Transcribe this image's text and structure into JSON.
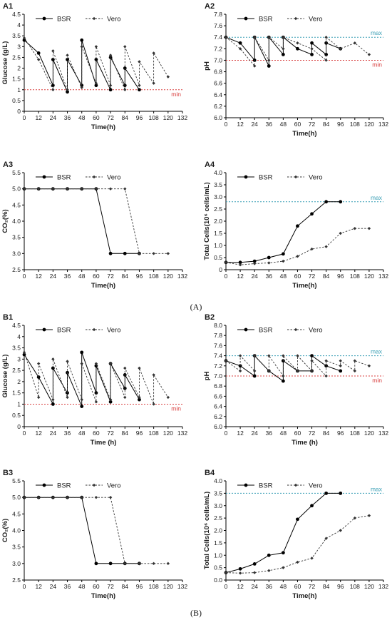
{
  "figure": {
    "label_a": "(A)",
    "label_b": "(B)"
  },
  "colors": {
    "bsr": "#000000",
    "vero": "#333333",
    "max": "#3a9fb5",
    "min": "#d94040",
    "axis": "#000000"
  },
  "chart_data": [
    {
      "id": "A1",
      "type": "line",
      "title": "A1",
      "xlabel": "Time(h)",
      "ylabel": "Glucose (g/L)",
      "xlim": [
        0,
        132
      ],
      "ylim": [
        0,
        4.5
      ],
      "xticks": [
        0,
        12,
        24,
        36,
        48,
        60,
        72,
        84,
        96,
        108,
        120,
        132
      ],
      "yticks": [
        0,
        0.5,
        1,
        1.5,
        2,
        2.5,
        3,
        3.5,
        4,
        4.5
      ],
      "ytick_labels": [
        "0",
        "0.5",
        "1",
        "1.5",
        "2",
        "2.5",
        "3",
        "3.5",
        "4",
        "4.5"
      ],
      "legend": "top",
      "reference_lines": [
        {
          "label": "min",
          "y": 1.0,
          "color": "#d94040"
        }
      ],
      "series": [
        {
          "name": "BSR",
          "style": "solid",
          "marker": "circle",
          "x": [
            0,
            12,
            24,
            24,
            36,
            36,
            48,
            48,
            60,
            60,
            72,
            72,
            84,
            84,
            96
          ],
          "y": [
            3.3,
            2.7,
            1.2,
            2.4,
            0.9,
            2.4,
            1.2,
            3.3,
            1.2,
            2.4,
            1.0,
            2.5,
            1.2,
            2.0,
            1.0
          ]
        },
        {
          "name": "Vero",
          "style": "dashed",
          "marker": "diamond",
          "x": [
            0,
            12,
            24,
            24,
            36,
            36,
            48,
            48,
            60,
            60,
            72,
            72,
            84,
            84,
            96,
            96,
            108,
            108,
            120
          ],
          "y": [
            3.4,
            2.4,
            1.0,
            2.8,
            1.0,
            2.6,
            1.1,
            3.0,
            1.3,
            3.0,
            1.2,
            2.6,
            1.0,
            3.0,
            1.2,
            2.3,
            1.3,
            2.7,
            1.6
          ]
        }
      ]
    },
    {
      "id": "A2",
      "type": "line",
      "title": "A2",
      "xlabel": "Time(h)",
      "ylabel": "pH",
      "xlim": [
        0,
        132
      ],
      "ylim": [
        6.0,
        7.8
      ],
      "xticks": [
        0,
        12,
        24,
        36,
        48,
        60,
        72,
        84,
        96,
        108,
        120,
        132
      ],
      "yticks": [
        6.0,
        6.2,
        6.4,
        6.6,
        6.8,
        7.0,
        7.2,
        7.4,
        7.6,
        7.8
      ],
      "ytick_labels": [
        "6.0",
        "6.2",
        "6.4",
        "6.6",
        "6.8",
        "7.0",
        "7.2",
        "7.4",
        "7.6",
        "7.8"
      ],
      "legend": "top",
      "reference_lines": [
        {
          "label": "max",
          "y": 7.4,
          "color": "#3a9fb5"
        },
        {
          "label": "min",
          "y": 7.0,
          "color": "#d94040"
        }
      ],
      "series": [
        {
          "name": "BSR",
          "style": "solid",
          "marker": "circle",
          "x": [
            0,
            12,
            24,
            24,
            36,
            36,
            48,
            48,
            60,
            72,
            72,
            84,
            84,
            96
          ],
          "y": [
            7.4,
            7.3,
            7.0,
            7.4,
            6.9,
            7.4,
            7.1,
            7.4,
            7.2,
            7.1,
            7.3,
            7.1,
            7.3,
            7.2
          ]
        },
        {
          "name": "Vero",
          "style": "dashed",
          "marker": "diamond",
          "x": [
            0,
            12,
            24,
            24,
            36,
            36,
            48,
            48,
            60,
            72,
            84,
            84,
            96,
            108,
            120
          ],
          "y": [
            7.4,
            7.2,
            6.9,
            7.4,
            7.0,
            7.4,
            7.2,
            7.4,
            7.3,
            7.2,
            7.0,
            7.4,
            7.2,
            7.3,
            7.1
          ]
        }
      ]
    },
    {
      "id": "A3",
      "type": "line",
      "title": "A3",
      "xlabel": "Time(h)",
      "ylabel": "CO₂(%)",
      "xlim": [
        0,
        132
      ],
      "ylim": [
        2.5,
        5.5
      ],
      "xticks": [
        0,
        12,
        24,
        36,
        48,
        60,
        72,
        84,
        96,
        108,
        120,
        132
      ],
      "yticks": [
        2.5,
        3.0,
        3.5,
        4.0,
        4.5,
        5.0,
        5.5
      ],
      "ytick_labels": [
        "2.5",
        "3.0",
        "3.5",
        "4.0",
        "4.5",
        "5.0",
        "5.5"
      ],
      "legend": "top",
      "reference_lines": [],
      "series": [
        {
          "name": "BSR",
          "style": "solid",
          "marker": "circle",
          "x": [
            0,
            12,
            24,
            36,
            48,
            60,
            72,
            84,
            96
          ],
          "y": [
            5.0,
            5.0,
            5.0,
            5.0,
            5.0,
            5.0,
            3.0,
            3.0,
            3.0
          ]
        },
        {
          "name": "Vero",
          "style": "dashed",
          "marker": "diamond",
          "x": [
            0,
            12,
            24,
            36,
            48,
            60,
            72,
            84,
            96,
            108,
            120
          ],
          "y": [
            5.0,
            5.0,
            5.0,
            5.0,
            5.0,
            5.0,
            5.0,
            5.0,
            3.0,
            3.0,
            3.0
          ]
        }
      ]
    },
    {
      "id": "A4",
      "type": "line",
      "title": "A4",
      "xlabel": "Time(h)",
      "ylabel": "Total Cells(10⁶ cells/mL)",
      "xlim": [
        0,
        132
      ],
      "ylim": [
        0,
        4.0
      ],
      "xticks": [
        0,
        12,
        24,
        36,
        48,
        60,
        72,
        84,
        96,
        108,
        120,
        132
      ],
      "yticks": [
        0,
        0.5,
        1.0,
        1.5,
        2.0,
        2.5,
        3.0,
        3.5,
        4.0
      ],
      "ytick_labels": [
        "0",
        "0.5",
        "1.0",
        "1.5",
        "2.0",
        "2.5",
        "3.0",
        "3.5",
        "4.0"
      ],
      "legend": "top",
      "reference_lines": [
        {
          "label": "max",
          "y": 2.8,
          "color": "#3a9fb5"
        }
      ],
      "series": [
        {
          "name": "BSR",
          "style": "solid",
          "marker": "circle",
          "x": [
            0,
            12,
            24,
            36,
            48,
            60,
            72,
            84,
            96
          ],
          "y": [
            0.3,
            0.3,
            0.35,
            0.5,
            0.65,
            1.8,
            2.3,
            2.8,
            2.8
          ]
        },
        {
          "name": "Vero",
          "style": "dashed",
          "marker": "diamond",
          "x": [
            0,
            12,
            24,
            36,
            48,
            60,
            72,
            84,
            96,
            108,
            120
          ],
          "y": [
            0.3,
            0.2,
            0.25,
            0.28,
            0.35,
            0.55,
            0.85,
            0.95,
            1.5,
            1.7,
            1.7
          ]
        }
      ]
    },
    {
      "id": "B1",
      "type": "line",
      "title": "B1",
      "xlabel": "Time (h)",
      "ylabel": "Glucose (g/L)",
      "xlim": [
        0,
        132
      ],
      "ylim": [
        0,
        4.5
      ],
      "xticks": [
        0,
        12,
        24,
        36,
        48,
        60,
        72,
        84,
        96,
        108,
        120,
        132
      ],
      "yticks": [
        0,
        0.5,
        1,
        1.5,
        2,
        2.5,
        3,
        3.5,
        4,
        4.5
      ],
      "ytick_labels": [
        "0",
        "0.5",
        "1",
        "1.5",
        "2",
        "2.5",
        "3",
        "3.5",
        "4",
        "4.5"
      ],
      "legend": "top",
      "reference_lines": [
        {
          "label": "min",
          "y": 1.0,
          "color": "#d94040"
        }
      ],
      "series": [
        {
          "name": "BSR",
          "style": "solid",
          "marker": "circle",
          "x": [
            0,
            12,
            24,
            24,
            36,
            36,
            48,
            48,
            60,
            60,
            72,
            72,
            84,
            84,
            96
          ],
          "y": [
            3.2,
            2.2,
            1.0,
            2.6,
            1.5,
            2.4,
            0.9,
            3.3,
            1.5,
            2.7,
            1.1,
            2.8,
            1.7,
            2.3,
            1.2
          ]
        },
        {
          "name": "Vero",
          "style": "dashed",
          "marker": "diamond",
          "x": [
            0,
            12,
            12,
            24,
            24,
            36,
            36,
            48,
            48,
            60,
            60,
            72,
            72,
            84,
            84,
            96,
            96,
            108,
            108,
            120
          ],
          "y": [
            3.3,
            1.3,
            2.8,
            1.2,
            3.0,
            1.3,
            2.9,
            1.2,
            2.8,
            1.1,
            2.8,
            1.2,
            2.8,
            1.3,
            2.6,
            1.3,
            2.6,
            1.0,
            2.3,
            1.3
          ]
        }
      ]
    },
    {
      "id": "B2",
      "type": "line",
      "title": "B2",
      "xlabel": "Time (h)",
      "ylabel": "pH",
      "xlim": [
        0,
        132
      ],
      "ylim": [
        6.0,
        8.0
      ],
      "xticks": [
        0,
        12,
        24,
        36,
        48,
        60,
        72,
        84,
        96,
        108,
        120,
        132
      ],
      "yticks": [
        6.0,
        6.2,
        6.4,
        6.6,
        6.8,
        7.0,
        7.2,
        7.4,
        7.6,
        7.8,
        8.0
      ],
      "ytick_labels": [
        "6.0",
        "6.2",
        "6.4",
        "6.6",
        "6.8",
        "7.0",
        "7.2",
        "7.4",
        "7.6",
        "7.8",
        "8.0"
      ],
      "legend": "top",
      "reference_lines": [
        {
          "label": "max",
          "y": 7.4,
          "color": "#3a9fb5"
        },
        {
          "label": "min",
          "y": 7.0,
          "color": "#d94040"
        }
      ],
      "series": [
        {
          "name": "BSR",
          "style": "solid",
          "marker": "circle",
          "x": [
            0,
            12,
            24,
            24,
            36,
            48,
            48,
            60,
            72,
            72,
            84,
            96
          ],
          "y": [
            7.3,
            7.2,
            7.0,
            7.4,
            7.1,
            6.9,
            7.3,
            7.1,
            7.1,
            7.4,
            7.2,
            7.1
          ]
        },
        {
          "name": "Vero",
          "style": "dashed",
          "marker": "diamond",
          "x": [
            0,
            12,
            12,
            24,
            24,
            36,
            36,
            48,
            48,
            60,
            60,
            72,
            72,
            84,
            84,
            96,
            96,
            108,
            108,
            120
          ],
          "y": [
            7.3,
            7.1,
            7.4,
            7.1,
            7.4,
            7.1,
            7.4,
            7.0,
            7.4,
            7.1,
            7.4,
            7.1,
            7.3,
            7.0,
            7.3,
            7.2,
            7.3,
            7.1,
            7.3,
            7.2
          ]
        }
      ]
    },
    {
      "id": "B3",
      "type": "line",
      "title": "B3",
      "xlabel": "Time(h)",
      "ylabel": "CO₂(%)",
      "xlim": [
        0,
        132
      ],
      "ylim": [
        2.5,
        5.5
      ],
      "xticks": [
        0,
        12,
        24,
        36,
        48,
        60,
        72,
        84,
        96,
        108,
        120,
        132
      ],
      "yticks": [
        2.5,
        3.0,
        3.5,
        4.0,
        4.5,
        5.0,
        5.5
      ],
      "ytick_labels": [
        "2.5",
        "3.0",
        "3.5",
        "4.0",
        "4.5",
        "5.0",
        "5.5"
      ],
      "legend": "top",
      "reference_lines": [],
      "series": [
        {
          "name": "BSR",
          "style": "solid",
          "marker": "circle",
          "x": [
            0,
            12,
            24,
            36,
            48,
            60,
            72,
            84,
            96
          ],
          "y": [
            5.0,
            5.0,
            5.0,
            5.0,
            5.0,
            3.0,
            3.0,
            3.0,
            3.0
          ]
        },
        {
          "name": "Vero",
          "style": "dashed",
          "marker": "diamond",
          "x": [
            0,
            12,
            24,
            36,
            48,
            60,
            72,
            84,
            96,
            108,
            120
          ],
          "y": [
            5.0,
            5.0,
            5.0,
            5.0,
            5.0,
            5.0,
            5.0,
            3.0,
            3.0,
            3.0,
            3.0
          ]
        }
      ]
    },
    {
      "id": "B4",
      "type": "line",
      "title": "B4",
      "xlabel": "Time(h)",
      "ylabel": "Total Cells(10⁶ cells/mL)",
      "xlim": [
        0,
        132
      ],
      "ylim": [
        0,
        4.0
      ],
      "xticks": [
        0,
        12,
        24,
        36,
        48,
        60,
        72,
        84,
        96,
        108,
        120,
        132
      ],
      "yticks": [
        0,
        0.5,
        1.0,
        1.5,
        2.0,
        2.5,
        3.0,
        3.5,
        4.0
      ],
      "ytick_labels": [
        "0.0",
        "0.5",
        "1.0",
        "1.5",
        "2.0",
        "2.5",
        "3.0",
        "3.5",
        "4.0"
      ],
      "legend": "top",
      "reference_lines": [
        {
          "label": "max",
          "y": 3.5,
          "color": "#3a9fb5"
        }
      ],
      "series": [
        {
          "name": "BSR",
          "style": "solid",
          "marker": "circle",
          "x": [
            0,
            12,
            24,
            36,
            48,
            60,
            72,
            84,
            96
          ],
          "y": [
            0.3,
            0.45,
            0.65,
            1.0,
            1.1,
            2.45,
            3.0,
            3.5,
            3.5
          ]
        },
        {
          "name": "Vero",
          "style": "dashed",
          "marker": "diamond",
          "x": [
            0,
            12,
            24,
            36,
            48,
            60,
            72,
            84,
            96,
            108,
            120
          ],
          "y": [
            0.3,
            0.28,
            0.3,
            0.38,
            0.5,
            0.72,
            0.88,
            1.68,
            2.0,
            2.5,
            2.6
          ]
        }
      ]
    }
  ]
}
